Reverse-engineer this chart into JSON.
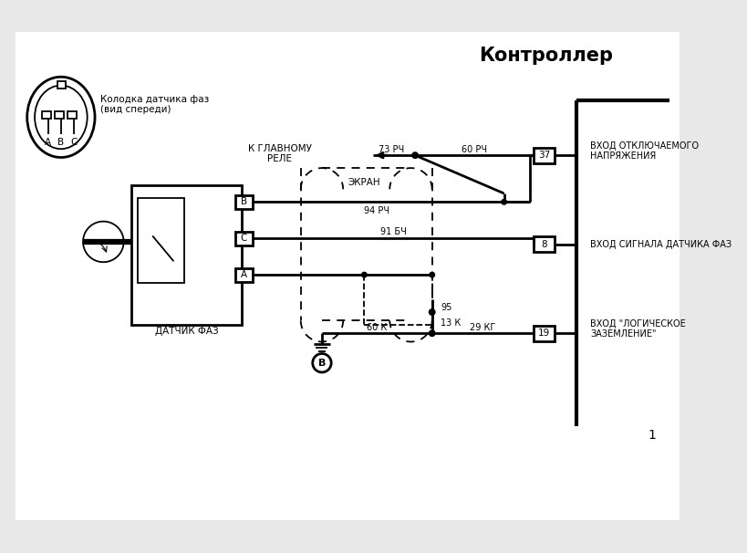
{
  "title": "Контроллер",
  "bg_color": "#e8e8e8",
  "line_color": "#000000",
  "text_color": "#000000",
  "connector_label": "Колодка датчика фаз\n(вид спереди)",
  "sensor_label": "ДАТЧИК ФАЗ",
  "labels": {
    "top_right": "ВХОД ОТКЛЮЧАЕМОГО\nНАПРЯЖЕНИЯ",
    "mid_right": "ВХОД СИГНАЛА ДАТЧИКА ФАЗ",
    "bot_right": "ВХОД \"ЛОГИЧЕСКОЕ\nЗАЗЕМЛЕНИЕ\"",
    "relay": "К ГЛАВНОМУ\nРЕЛЕ",
    "shield": "ЭКРАН"
  },
  "wire_labels": {
    "w1": "60 РЧ",
    "w2": "73 РЧ",
    "w3": "94 РЧ",
    "w4": "91 БЧ",
    "w5": "95",
    "w6": "13 К",
    "w7": "60 К",
    "w8": "29 КГ"
  },
  "pin_numbers": {
    "p37": "37",
    "p8": "8",
    "p19": "19"
  },
  "ground_label": "В",
  "abc_labels": [
    "A",
    "B",
    "C"
  ]
}
